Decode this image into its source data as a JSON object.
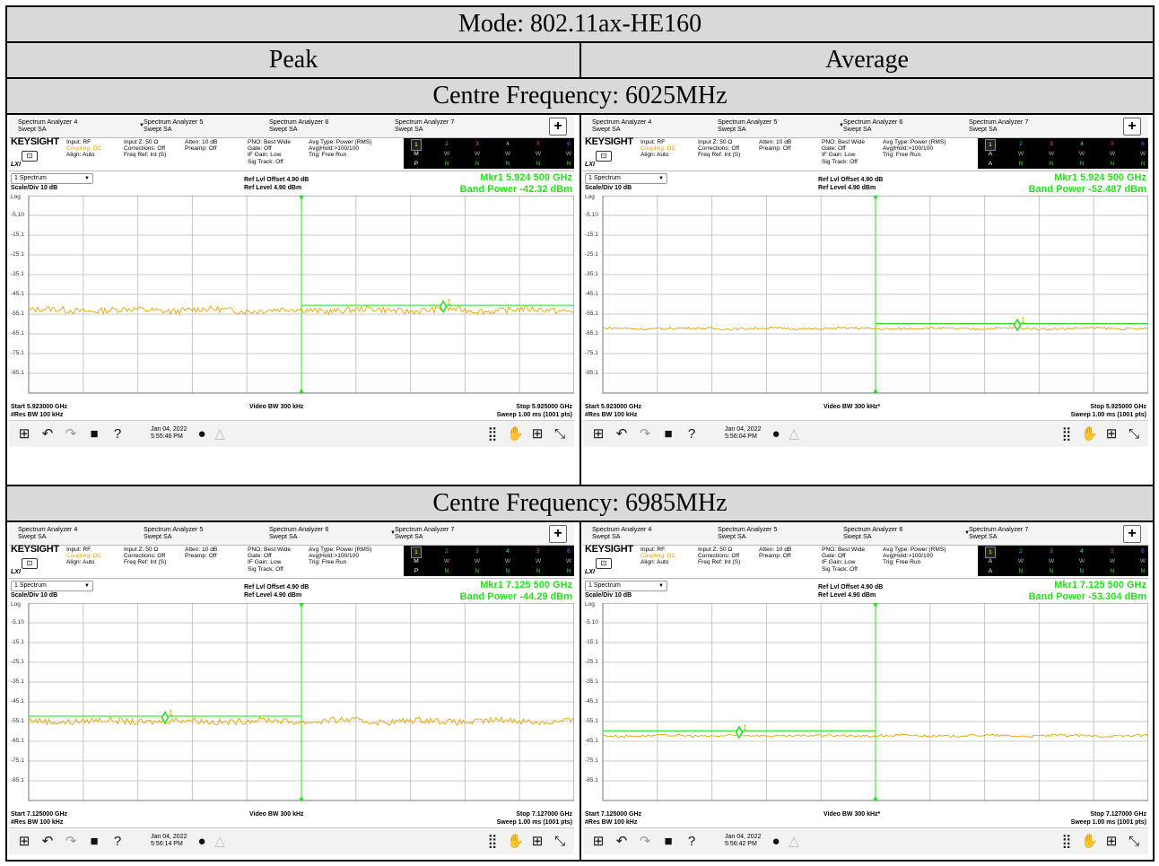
{
  "table": {
    "mode_title": "Mode: 802.11ax-HE160",
    "col_peak": "Peak",
    "col_average": "Average",
    "section1_title": "Centre Frequency: 6025MHz",
    "section2_title": "Centre Frequency: 6985MHz"
  },
  "analyzer_common": {
    "tabs": [
      {
        "name": "Spectrum Analyzer 4",
        "sub": "Swept SA"
      },
      {
        "name": "Spectrum Analyzer 5",
        "sub": "Swept SA"
      },
      {
        "name": "Spectrum Analyzer 6",
        "sub": "Swept SA"
      },
      {
        "name": "Spectrum Analyzer 7",
        "sub": "Swept SA"
      }
    ],
    "plus": "+",
    "brand": "KEYSIGHT",
    "brand_sub": "LXI",
    "monitor_glyph": "⊡",
    "input_rf": "Input: RF",
    "coupling": "Coupling: DC",
    "align": "Align: Auto",
    "input_z": "Input Z: 50 Ω",
    "corrections": "Corrections: Off",
    "freq_ref": "Freq Ref: Int (S)",
    "atten": "Atten: 10 dB",
    "preamp": "Preamp: Off",
    "pno": "PNO: Best Wide",
    "gate": "Gate: Off",
    "if_gain": "IF Gain: Low",
    "sig_track": "Sig Track: Off",
    "avg_type": "Avg Type: Power (RMS)",
    "avg_hold": "Avg|Hold:>100/100",
    "trig": "Trig: Free Run",
    "trace_numbers": [
      "1",
      "2",
      "3",
      "4",
      "5",
      "6"
    ],
    "trace_colors": [
      "#ffff00",
      "#00c0ff",
      "#ff40ff",
      "#40ff40",
      "#ff4040",
      "#4080ff"
    ],
    "spectrum_select": "1 Spectrum",
    "scale_div": "Scale/Div 10 dB",
    "log": "Log",
    "ref_offset": "Ref Lvl Offset 4.90 dB",
    "ref_level": "Ref Level 4.90 dBm",
    "y_ticks": [
      "-5.10",
      "-15.1",
      "-25.1",
      "-35.1",
      "-45.1",
      "-55.1",
      "-65.1",
      "-75.1",
      "-85.1"
    ],
    "res_bw": "#Res BW 100 kHz",
    "sweep": "Sweep 1.00 ms (1001 pts)",
    "colors": {
      "trace": "#e8a400",
      "marker": "#26e01e",
      "grid": "#c8c8c8",
      "line": "#26e01e"
    }
  },
  "panels": [
    {
      "id": "p1",
      "mode": "peak",
      "active_tab": 1,
      "trace_row2": [
        "M",
        "W",
        "W",
        "W",
        "W",
        "W"
      ],
      "trace_row3": [
        "P",
        "N",
        "N",
        "N",
        "N",
        "N"
      ],
      "mkr": "Mkr1  5.924 500 GHz",
      "band": "Band Power  -42.32 dBm",
      "start": "Start 5.923000 GHz",
      "video": "Video BW 300 kHz",
      "stop": "Stop 5.925000 GHz",
      "date": "Jan 04, 2022",
      "time": "5:55:46 PM",
      "trace_level": -53.1,
      "marker_x_frac": 0.76,
      "band_line_x_frac": 0.5,
      "line_left": false
    },
    {
      "id": "p2",
      "mode": "avg",
      "active_tab": 2,
      "trace_row2": [
        "A",
        "W",
        "W",
        "W",
        "W",
        "W"
      ],
      "trace_row3": [
        "A",
        "N",
        "N",
        "N",
        "N",
        "N"
      ],
      "mkr": "Mkr1  5.924 500 GHz",
      "band": "Band Power  -52.487 dBm",
      "start": "Start 5.923000 GHz",
      "video": "Video BW 300 kHz*",
      "stop": "Stop 5.925000 GHz",
      "date": "Jan 04, 2022",
      "time": "5:56:04 PM",
      "trace_level": -62.4,
      "marker_x_frac": 0.76,
      "band_line_x_frac": 0.5,
      "line_left": false
    },
    {
      "id": "p3",
      "mode": "peak",
      "active_tab": 3,
      "trace_row2": [
        "M",
        "W",
        "W",
        "W",
        "W",
        "W"
      ],
      "trace_row3": [
        "P",
        "N",
        "N",
        "N",
        "N",
        "N"
      ],
      "mkr": "Mkr1  7.125 500 GHz",
      "band": "Band Power  -44.29 dBm",
      "start": "Start 7.125000 GHz",
      "video": "Video BW 300 kHz",
      "stop": "Stop 7.127000 GHz",
      "date": "Jan 04, 2022",
      "time": "5:56:14 PM",
      "trace_level": -54.9,
      "marker_x_frac": 0.25,
      "band_line_x_frac": 0.5,
      "line_left": true
    },
    {
      "id": "p4",
      "mode": "avg",
      "active_tab": 3,
      "trace_row2": [
        "A",
        "W",
        "W",
        "W",
        "W",
        "W"
      ],
      "trace_row3": [
        "A",
        "N",
        "N",
        "N",
        "N",
        "N"
      ],
      "mkr": "Mkr1  7.125 500 GHz",
      "band": "Band Power  -53.304 dBm",
      "start": "Start 7.125000 GHz",
      "video": "Video BW 300 kHz*",
      "stop": "Stop 7.127000 GHz",
      "date": "Jan 04, 2022",
      "time": "5:56:42 PM",
      "trace_level": -62.3,
      "marker_x_frac": 0.25,
      "band_line_x_frac": 0.5,
      "line_left": true
    }
  ],
  "toolbar": {
    "icons": [
      "windows-icon",
      "undo-icon",
      "redo-icon",
      "folder-icon",
      "help-icon"
    ],
    "glyphs": [
      "⊞",
      "↶",
      "↷",
      "■",
      "?"
    ],
    "right_glyphs": [
      "⣿",
      "✋",
      "⊞",
      "⤡"
    ]
  }
}
